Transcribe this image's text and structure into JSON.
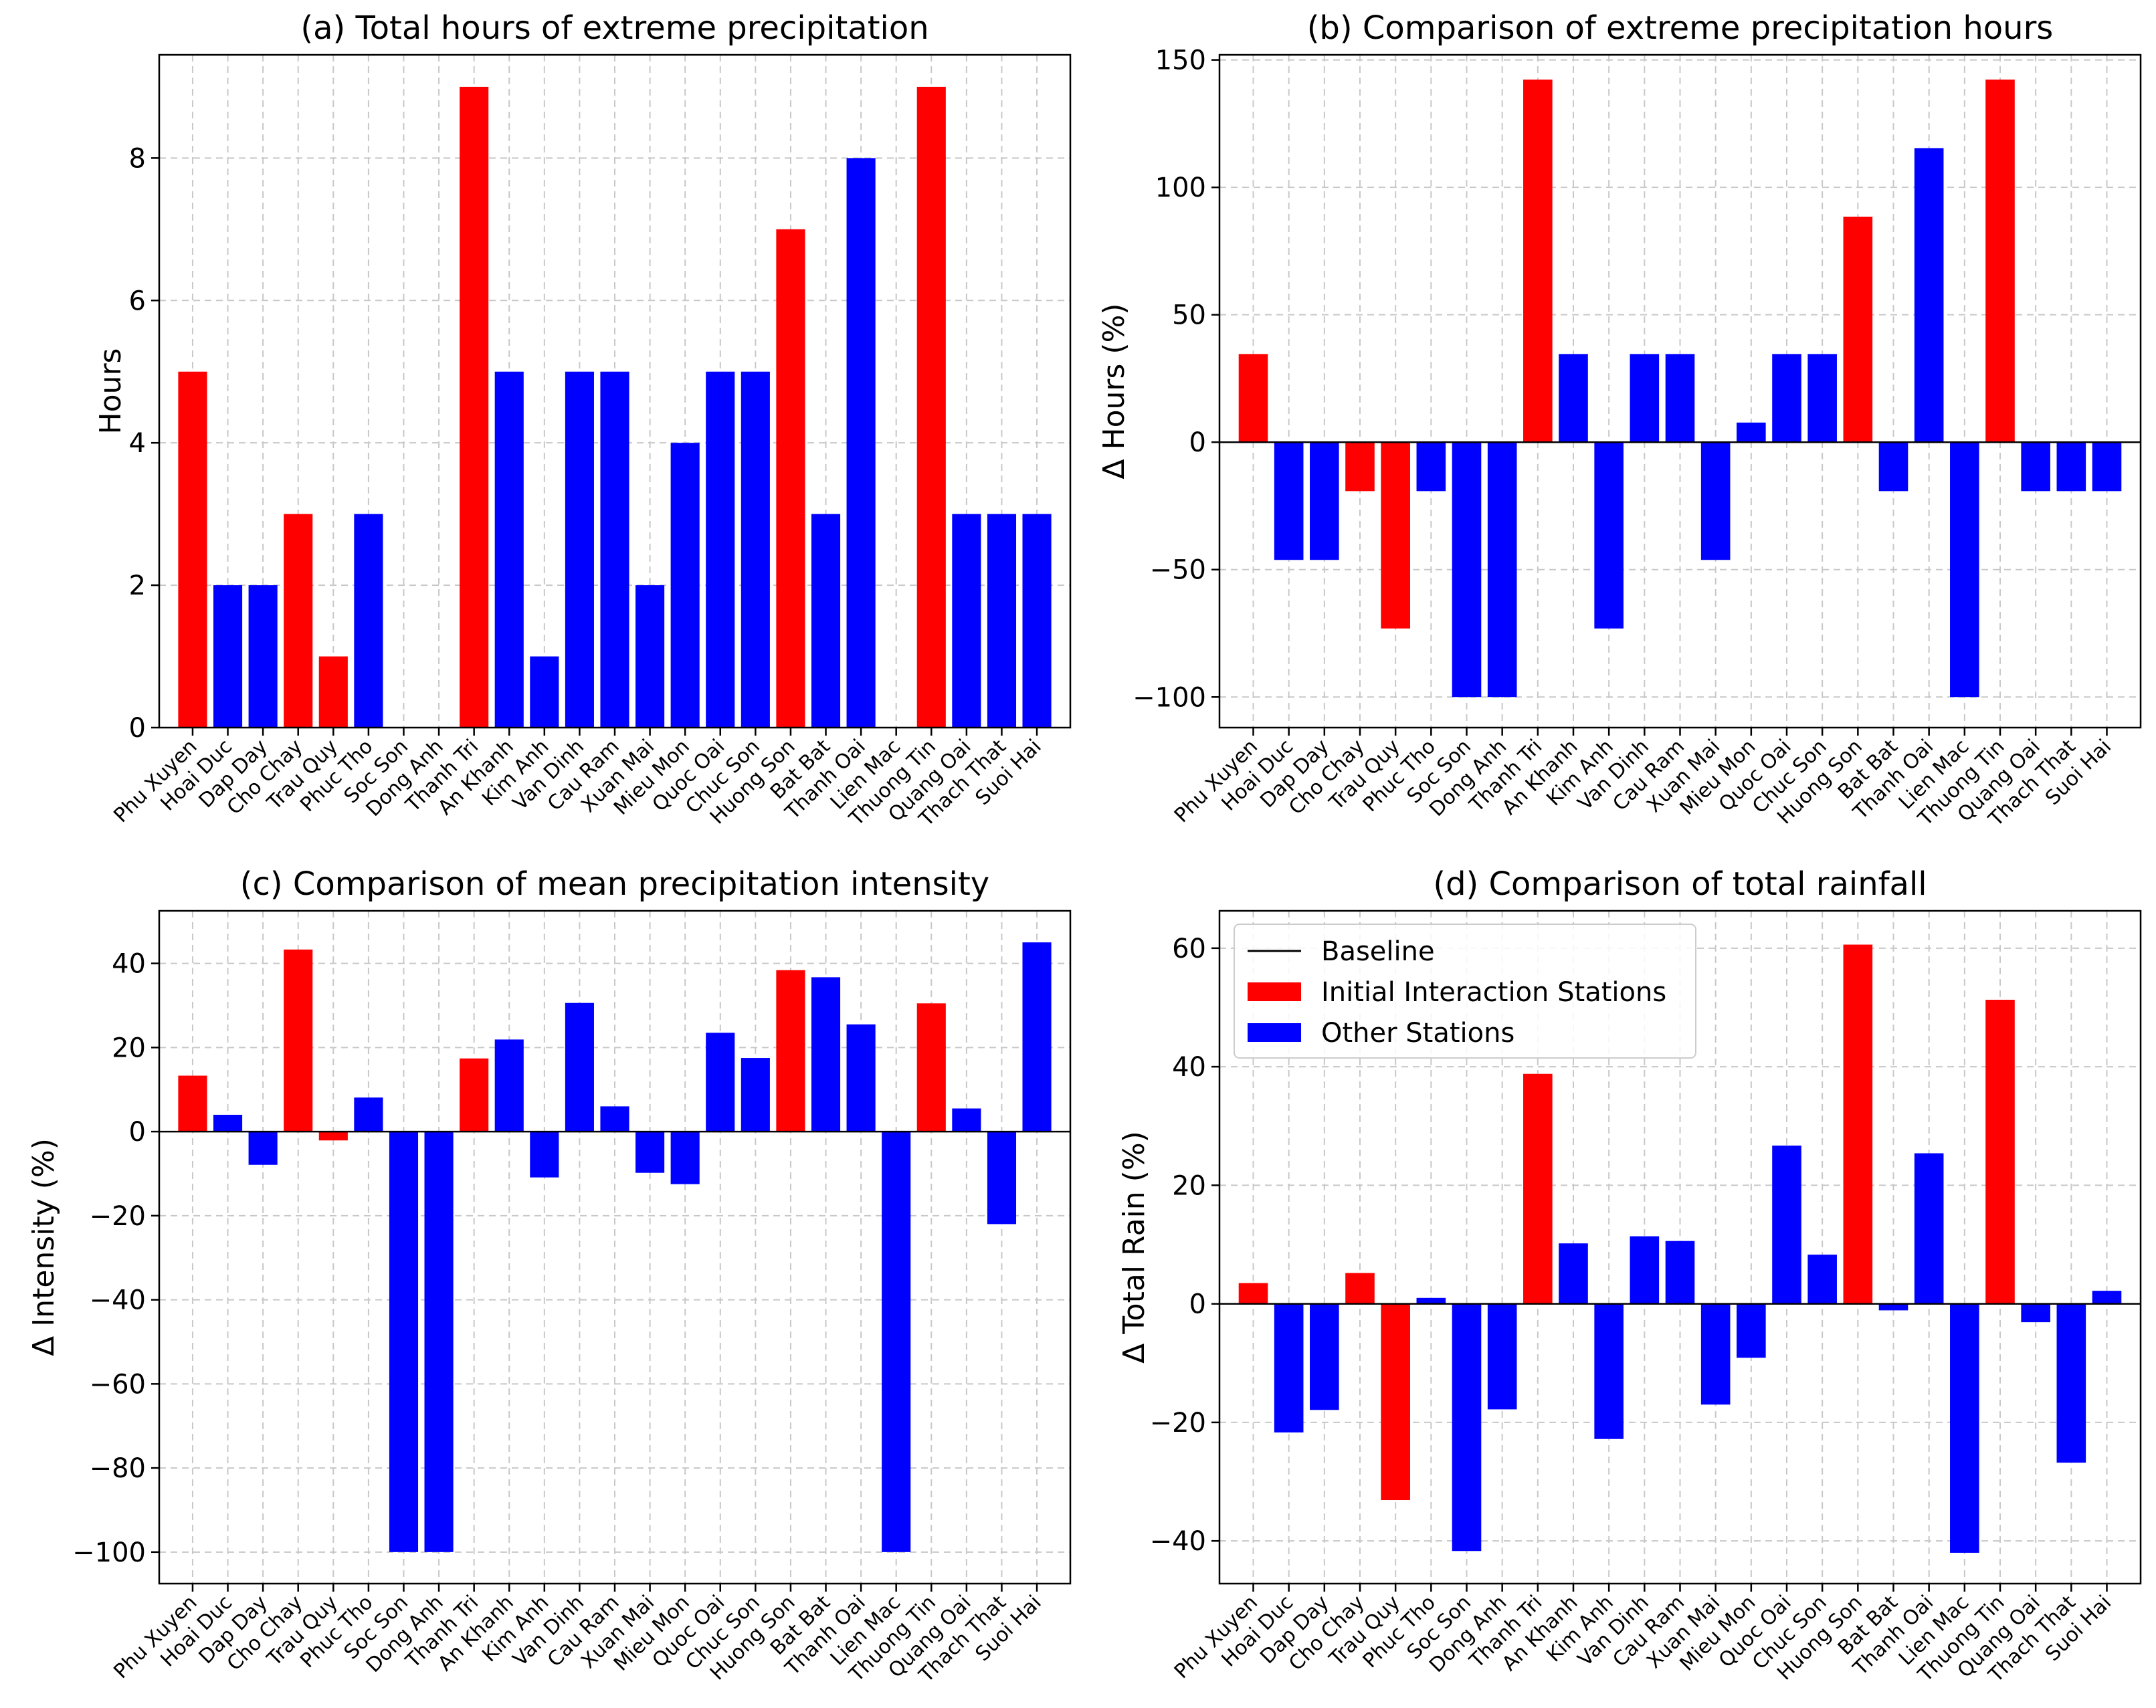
{
  "colors": {
    "initial": "#ff0000",
    "other": "#0000ff",
    "baseline": "#000000",
    "grid": "#c8c8c8"
  },
  "stations": [
    "Phu Xuyen",
    "Hoai Duc",
    "Dap Day",
    "Cho Chay",
    "Trau Quy",
    "Phuc Tho",
    "Soc Son",
    "Dong Anh",
    "Thanh Tri",
    "An Khanh",
    "Kim Anh",
    "Van Dinh",
    "Cau Ram",
    "Xuan Mai",
    "Mieu Mon",
    "Quoc Oai",
    "Chuc Son",
    "Huong Son",
    "Bat Bat",
    "Thanh Oai",
    "Lien Mac",
    "Thuong Tin",
    "Quang Oai",
    "Thach That",
    "Suoi Hai"
  ],
  "station_groups": [
    "initial",
    "other",
    "other",
    "initial",
    "initial",
    "other",
    "other",
    "other",
    "initial",
    "other",
    "other",
    "other",
    "other",
    "other",
    "other",
    "other",
    "other",
    "initial",
    "other",
    "other",
    "other",
    "initial",
    "other",
    "other",
    "other"
  ],
  "legend": {
    "baseline": "Baseline",
    "initial": "Initial Interaction Stations",
    "other": "Other Stations"
  },
  "chart_data": [
    {
      "type": "bar",
      "title": "(a) Total hours of extreme precipitation",
      "xlabel": "",
      "ylabel": "Hours",
      "ylim": [
        0,
        9.45
      ],
      "yticks": [
        0,
        2,
        4,
        6,
        8
      ],
      "categories": [
        "Phu Xuyen",
        "Hoai Duc",
        "Dap Day",
        "Cho Chay",
        "Trau Quy",
        "Phuc Tho",
        "Soc Son",
        "Dong Anh",
        "Thanh Tri",
        "An Khanh",
        "Kim Anh",
        "Van Dinh",
        "Cau Ram",
        "Xuan Mai",
        "Mieu Mon",
        "Quoc Oai",
        "Chuc Son",
        "Huong Son",
        "Bat Bat",
        "Thanh Oai",
        "Lien Mac",
        "Thuong Tin",
        "Quang Oai",
        "Thach That",
        "Suoi Hai"
      ],
      "values": [
        5,
        2,
        2,
        3,
        1,
        3,
        0,
        0,
        9,
        5,
        1,
        5,
        5,
        2,
        4,
        5,
        5,
        7,
        3,
        8,
        0,
        9,
        3,
        3,
        3
      ],
      "baseline": false,
      "legend": false
    },
    {
      "type": "bar",
      "title": "(b) Comparison of extreme precipitation hours",
      "xlabel": "",
      "ylabel": "Δ Hours (%)",
      "ylim": [
        -112,
        152
      ],
      "yticks": [
        -100,
        -50,
        0,
        50,
        100,
        150
      ],
      "categories": [
        "Phu Xuyen",
        "Hoai Duc",
        "Dap Day",
        "Cho Chay",
        "Trau Quy",
        "Phuc Tho",
        "Soc Son",
        "Dong Anh",
        "Thanh Tri",
        "An Khanh",
        "Kim Anh",
        "Van Dinh",
        "Cau Ram",
        "Xuan Mai",
        "Mieu Mon",
        "Quoc Oai",
        "Chuc Son",
        "Huong Son",
        "Bat Bat",
        "Thanh Oai",
        "Lien Mac",
        "Thuong Tin",
        "Quang Oai",
        "Thach That",
        "Suoi Hai"
      ],
      "values": [
        34.6,
        -46.2,
        -46.2,
        -19.2,
        -73.1,
        -19.2,
        -100,
        -100,
        142.3,
        34.6,
        -73.1,
        34.6,
        34.6,
        -46.2,
        7.7,
        34.6,
        34.6,
        88.5,
        -19.2,
        115.4,
        -100,
        142.3,
        -19.2,
        -19.2,
        -19.2
      ],
      "baseline": true,
      "legend": false
    },
    {
      "type": "bar",
      "title": "(c) Comparison of mean precipitation intensity",
      "xlabel": "",
      "ylabel": "Δ Intensity (%)",
      "ylim": [
        -107.5,
        52.5
      ],
      "yticks": [
        -100,
        -80,
        -60,
        -40,
        -20,
        0,
        20,
        40
      ],
      "categories": [
        "Phu Xuyen",
        "Hoai Duc",
        "Dap Day",
        "Cho Chay",
        "Trau Quy",
        "Phuc Tho",
        "Soc Son",
        "Dong Anh",
        "Thanh Tri",
        "An Khanh",
        "Kim Anh",
        "Van Dinh",
        "Cau Ram",
        "Xuan Mai",
        "Mieu Mon",
        "Quoc Oai",
        "Chuc Son",
        "Huong Son",
        "Bat Bat",
        "Thanh Oai",
        "Lien Mac",
        "Thuong Tin",
        "Quang Oai",
        "Thach That",
        "Suoi Hai"
      ],
      "values": [
        13.3,
        4.0,
        -7.9,
        43.3,
        -2.1,
        8.1,
        -100,
        -100,
        17.4,
        21.9,
        -10.9,
        30.6,
        6.0,
        -9.8,
        -12.5,
        23.5,
        17.5,
        38.4,
        36.7,
        25.5,
        -100,
        30.5,
        5.5,
        -22.0,
        45.0
      ],
      "baseline": true,
      "legend": false
    },
    {
      "type": "bar",
      "title": "(d) Comparison of total rainfall",
      "xlabel": "",
      "ylabel": "Δ Total Rain (%)",
      "ylim": [
        -47.2,
        66.3
      ],
      "yticks": [
        -40,
        -20,
        0,
        20,
        40,
        60
      ],
      "categories": [
        "Phu Xuyen",
        "Hoai Duc",
        "Dap Day",
        "Cho Chay",
        "Trau Quy",
        "Phuc Tho",
        "Soc Son",
        "Dong Anh",
        "Thanh Tri",
        "An Khanh",
        "Kim Anh",
        "Van Dinh",
        "Cau Ram",
        "Xuan Mai",
        "Mieu Mon",
        "Quoc Oai",
        "Chuc Son",
        "Huong Son",
        "Bat Bat",
        "Thanh Oai",
        "Lien Mac",
        "Thuong Tin",
        "Quang Oai",
        "Thach That",
        "Suoi Hai"
      ],
      "values": [
        3.5,
        -21.7,
        -17.9,
        5.2,
        -33.1,
        1.0,
        -41.7,
        -17.8,
        38.8,
        10.2,
        -22.8,
        11.4,
        10.6,
        -17.0,
        -9.1,
        26.7,
        8.3,
        60.6,
        -1.1,
        25.4,
        -42.0,
        51.3,
        -3.1,
        -26.8,
        2.2
      ],
      "baseline": true,
      "legend": true,
      "legend_position": "top-left"
    }
  ]
}
